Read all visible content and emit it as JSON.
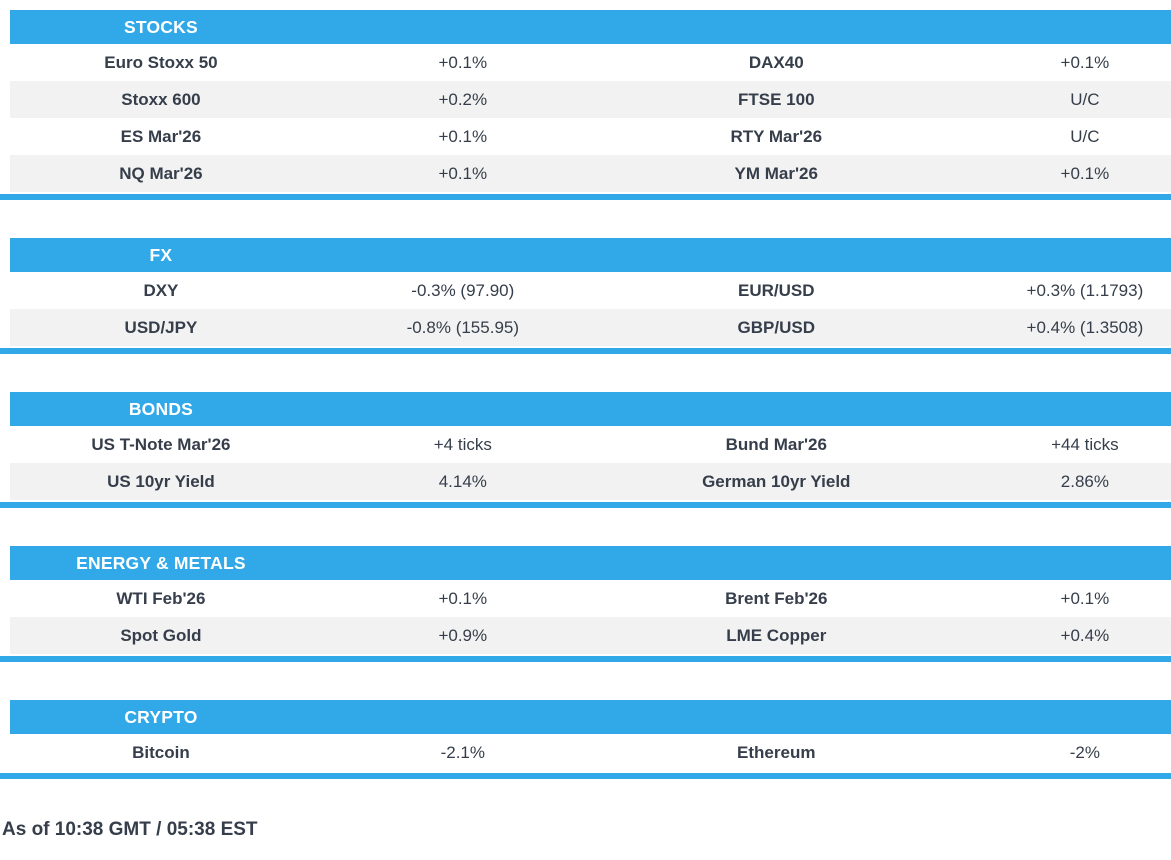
{
  "colors": {
    "accent": "#31a9e8",
    "row_alt": "#f2f2f2",
    "text": "#353e4a",
    "header_text": "#ffffff"
  },
  "tables": [
    {
      "title": "STOCKS",
      "rows": [
        {
          "name1": "Euro Stoxx 50",
          "value1": "+0.1%",
          "name2": "DAX40",
          "value2": "+0.1%"
        },
        {
          "name1": "Stoxx 600",
          "value1": "+0.2%",
          "name2": "FTSE 100",
          "value2": "U/C"
        },
        {
          "name1": "ES Mar'26",
          "value1": "+0.1%",
          "name2": "RTY Mar'26",
          "value2": "U/C"
        },
        {
          "name1": "NQ Mar'26",
          "value1": "+0.1%",
          "name2": "YM Mar'26",
          "value2": "+0.1%"
        }
      ]
    },
    {
      "title": "FX",
      "rows": [
        {
          "name1": "DXY",
          "value1": "-0.3% (97.90)",
          "name2": "EUR/USD",
          "value2": "+0.3% (1.1793)"
        },
        {
          "name1": "USD/JPY",
          "value1": "-0.8% (155.95)",
          "name2": "GBP/USD",
          "value2": "+0.4% (1.3508)"
        }
      ]
    },
    {
      "title": "BONDS",
      "rows": [
        {
          "name1": "US T-Note Mar'26",
          "value1": "+4 ticks",
          "name2": "Bund Mar'26",
          "value2": "+44 ticks"
        },
        {
          "name1": "US 10yr Yield",
          "value1": "4.14%",
          "name2": "German 10yr Yield",
          "value2": "2.86%"
        }
      ]
    },
    {
      "title": "ENERGY & METALS",
      "rows": [
        {
          "name1": "WTI Feb'26",
          "value1": "+0.1%",
          "name2": "Brent Feb'26",
          "value2": "+0.1%"
        },
        {
          "name1": "Spot Gold",
          "value1": "+0.9%",
          "name2": "LME Copper",
          "value2": "+0.4%"
        }
      ]
    },
    {
      "title": "CRYPTO",
      "rows": [
        {
          "name1": "Bitcoin",
          "value1": "-2.1%",
          "name2": "Ethereum",
          "value2": "-2%"
        }
      ]
    }
  ],
  "footer": {
    "as_of": "As of 10:38 GMT / 05:38 EST"
  }
}
